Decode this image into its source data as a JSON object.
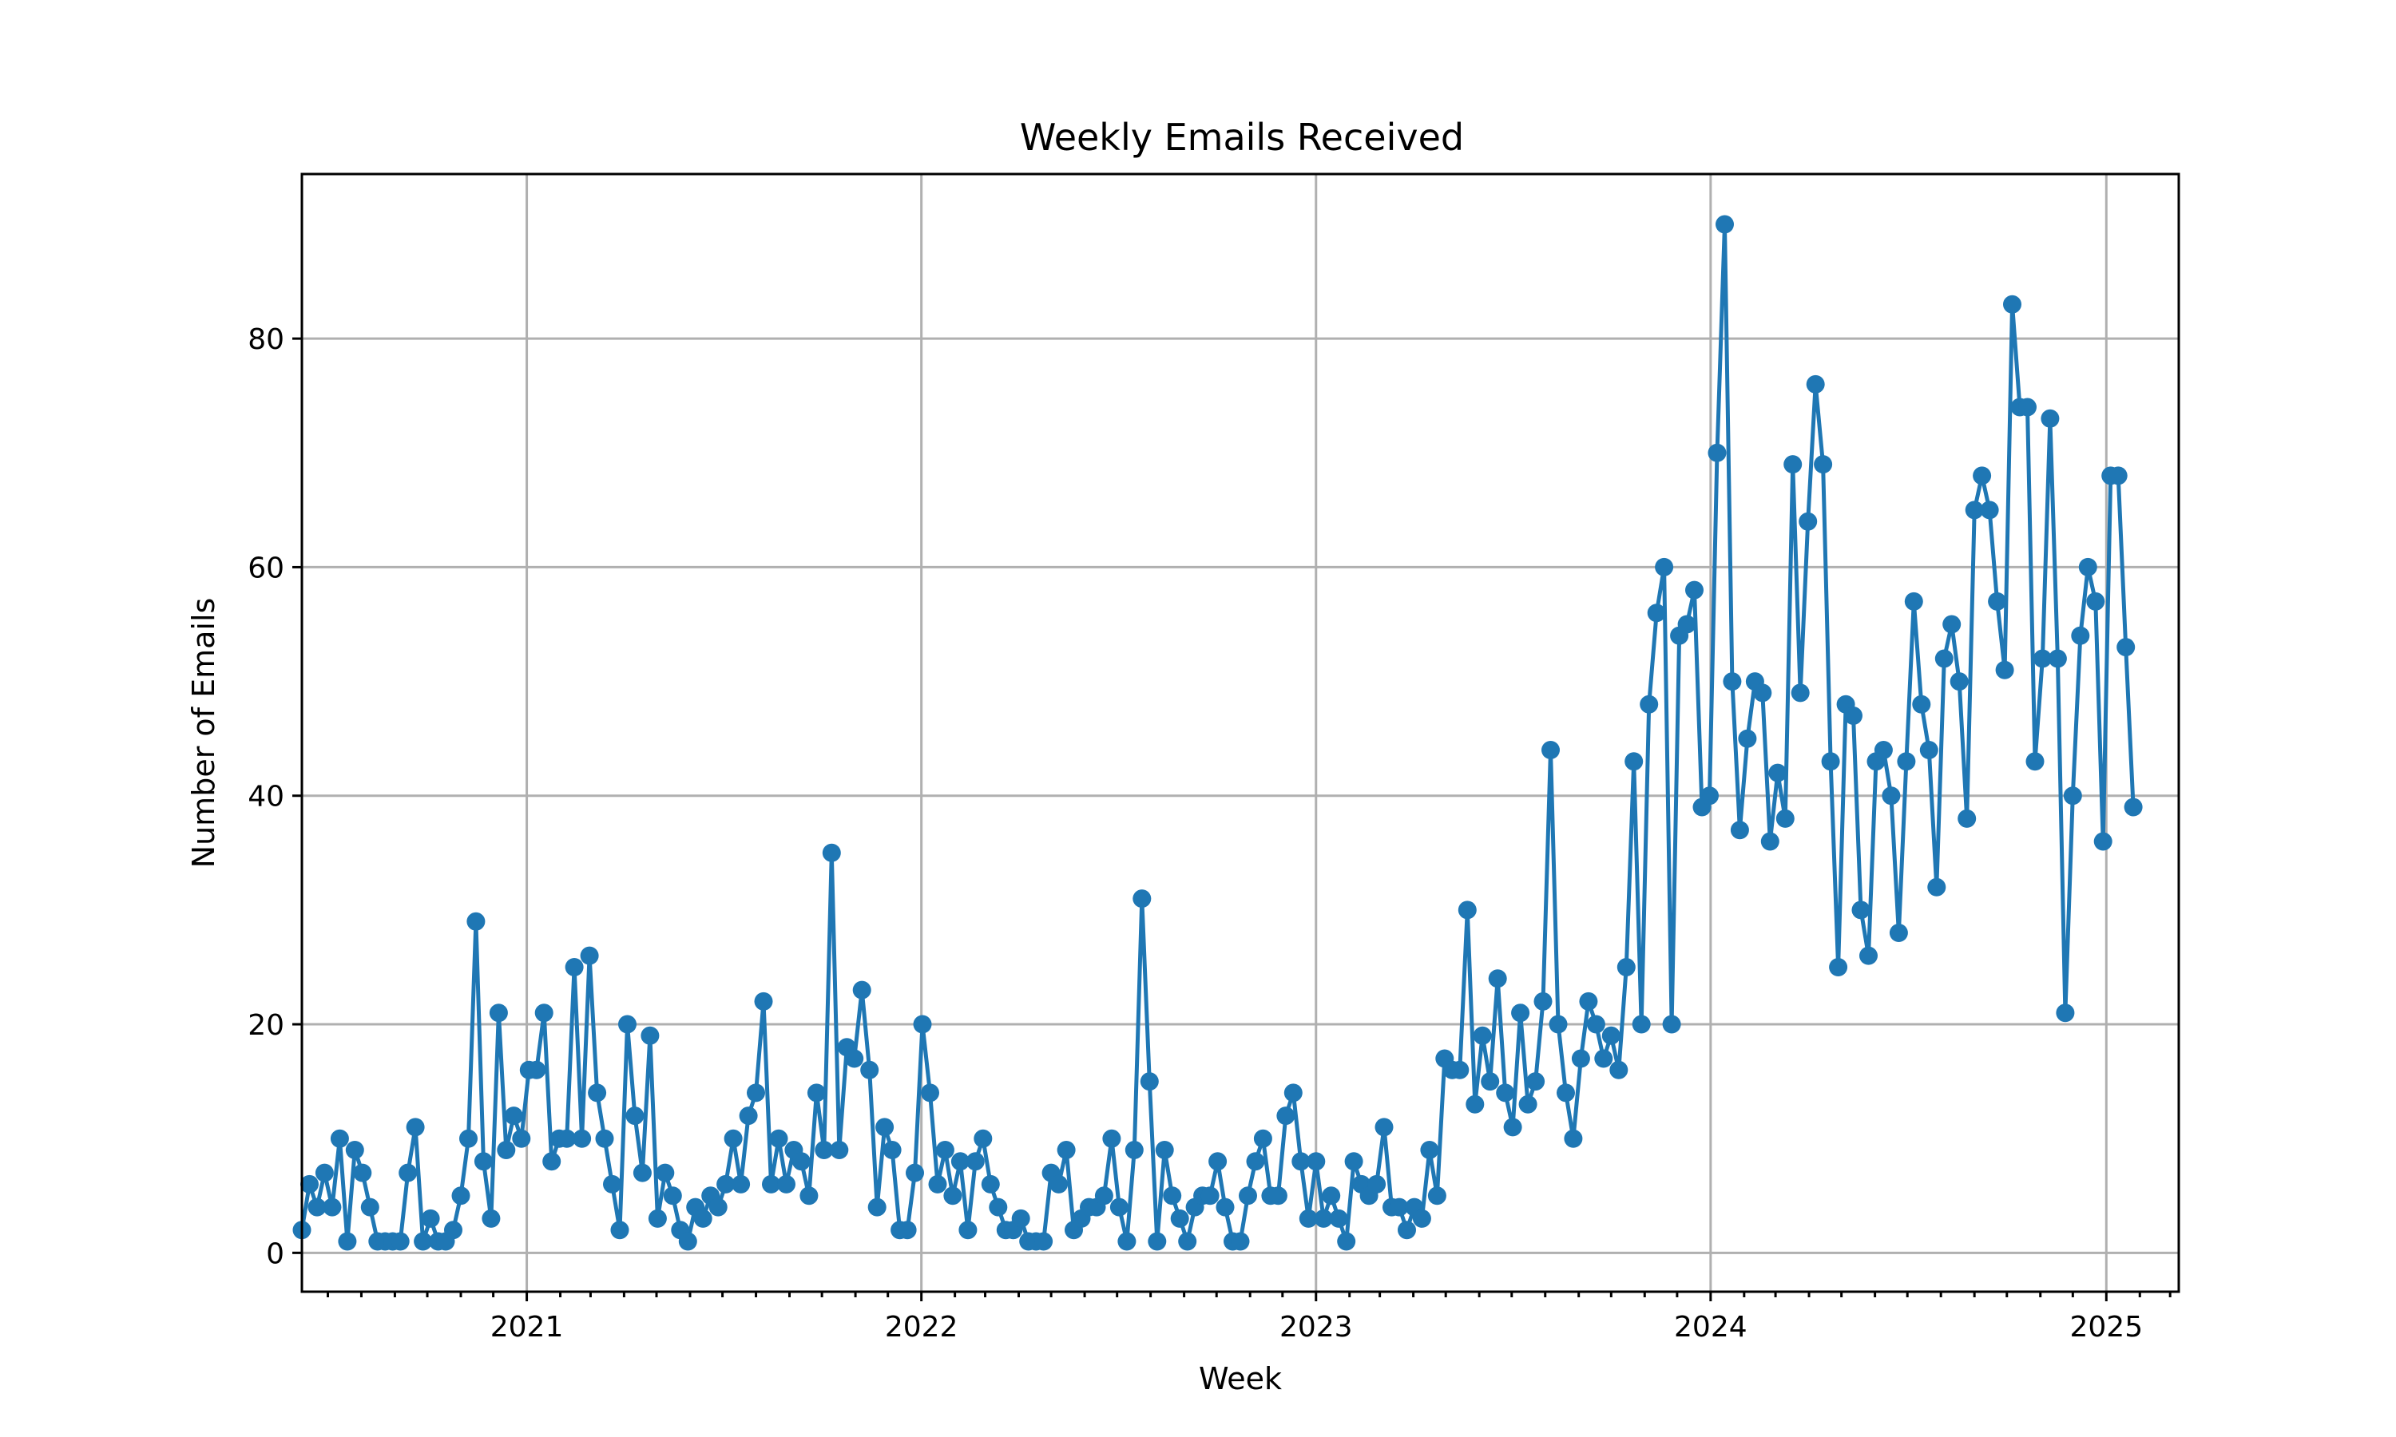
{
  "chart_data": {
    "type": "line",
    "title": "Weekly Emails Received",
    "xlabel": "Week",
    "ylabel": "Number of Emails",
    "x_tick_labels": [
      "2021",
      "2022",
      "2023",
      "2024",
      "2025"
    ],
    "y_tick_labels": [
      "0",
      "20",
      "40",
      "60",
      "80"
    ],
    "y_ticks": [
      0,
      20,
      40,
      60,
      80
    ],
    "ylim": [
      -3.4,
      94.4
    ],
    "xlim": [
      "2020-06-07",
      "2025-03-09"
    ],
    "grid": true,
    "legend": "none",
    "series_color": "#1f77b4",
    "x_start": "2020-06-07",
    "interval": "weekly",
    "values": [
      2,
      6,
      4,
      7,
      4,
      10,
      1,
      9,
      7,
      4,
      1,
      1,
      1,
      1,
      7,
      11,
      1,
      3,
      1,
      1,
      2,
      5,
      10,
      29,
      8,
      3,
      21,
      9,
      12,
      10,
      16,
      16,
      21,
      8,
      10,
      10,
      25,
      10,
      26,
      14,
      10,
      6,
      2,
      20,
      12,
      7,
      19,
      3,
      7,
      5,
      2,
      1,
      4,
      3,
      5,
      4,
      6,
      10,
      6,
      12,
      14,
      22,
      6,
      10,
      6,
      9,
      8,
      5,
      14,
      9,
      35,
      9,
      18,
      17,
      23,
      16,
      4,
      11,
      9,
      2,
      2,
      7,
      20,
      14,
      6,
      9,
      5,
      8,
      2,
      8,
      10,
      6,
      4,
      2,
      2,
      3,
      1,
      1,
      1,
      7,
      6,
      9,
      2,
      3,
      4,
      4,
      5,
      10,
      4,
      1,
      9,
      31,
      15,
      1,
      9,
      5,
      3,
      1,
      4,
      5,
      5,
      8,
      4,
      1,
      1,
      5,
      8,
      10,
      5,
      5,
      12,
      14,
      8,
      3,
      8,
      3,
      5,
      3,
      1,
      8,
      6,
      5,
      6,
      11,
      4,
      4,
      2,
      4,
      3,
      9,
      5,
      17,
      16,
      16,
      30,
      13,
      19,
      15,
      24,
      14,
      11,
      21,
      13,
      15,
      22,
      44,
      20,
      14,
      10,
      17,
      22,
      20,
      17,
      19,
      16,
      25,
      43,
      20,
      48,
      56,
      60,
      20,
      54,
      55,
      58,
      39,
      40,
      70,
      90,
      50,
      37,
      45,
      50,
      49,
      36,
      42,
      38,
      69,
      49,
      64,
      76,
      69,
      43,
      25,
      48,
      47,
      30,
      26,
      43,
      44,
      40,
      28,
      43,
      57,
      48,
      44,
      32,
      52,
      55,
      50,
      38,
      65,
      68,
      65,
      57,
      51,
      83,
      74,
      74,
      43,
      52,
      73,
      52,
      21,
      40,
      54,
      60,
      57,
      36,
      68,
      68,
      53,
      39
    ]
  }
}
